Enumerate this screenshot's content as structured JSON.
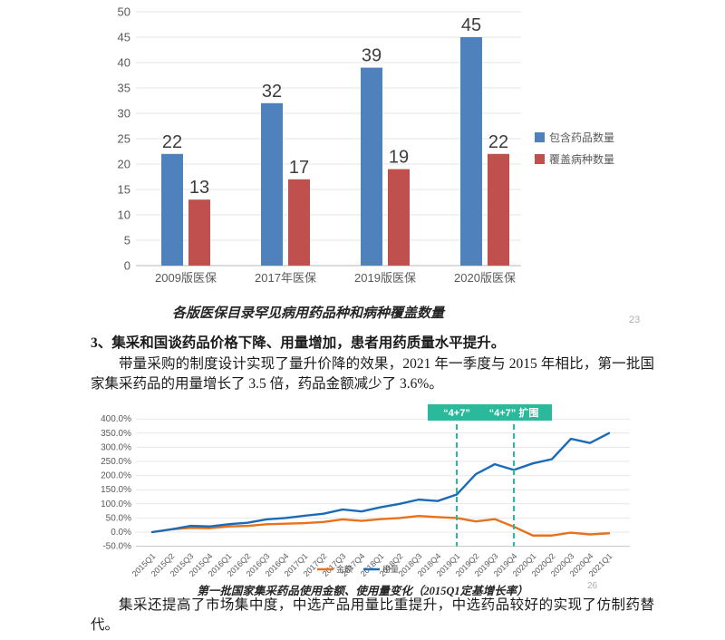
{
  "page": {
    "background": "#ffffff"
  },
  "bar_section": {
    "caption": "各版医保目录罕见病用药品种和病种覆盖数量",
    "page_number": "23"
  },
  "body": {
    "heading": "3、集采和国谈药品价格下降、用量增加，患者用药质量水平提升。",
    "paragraph1": "带量采购的制度设计实现了量升价降的效果，2021 年一季度与 2015 年相比，第一批国家集采药品的用量增长了 3.5 倍，药品金额减少了 3.6%。",
    "paragraph2": "集采还提高了市场集中度，中选产品用量比重提升，中选药品较好的实现了仿制药替代。"
  },
  "line_section": {
    "caption": "第一批国家集采药品使用金额、使用量变化（2015Q1定基增长率）",
    "page_number": "26"
  },
  "colors": {
    "bar_blue": "#4F81BD",
    "bar_red": "#C0504D",
    "line_blue": "#1B6BB8",
    "line_orange": "#E8711C",
    "annotation_teal": "#2BB99B",
    "grid": "#e4e4e4",
    "axis_text": "#595959"
  },
  "chart_data": [
    {
      "type": "bar",
      "title": "各版医保目录罕见病用药品种和病种覆盖数量",
      "categories": [
        "2009版医保",
        "2017年医保",
        "2019版医保",
        "2020版医保"
      ],
      "series": [
        {
          "name": "包含药品数量",
          "color": "#4F81BD",
          "values": [
            22,
            32,
            39,
            45
          ]
        },
        {
          "name": "覆盖病种数量",
          "color": "#C0504D",
          "values": [
            13,
            17,
            19,
            22
          ]
        }
      ],
      "ylim": [
        0,
        50
      ],
      "ytick_step": 5,
      "grid": true,
      "legend_position": "right"
    },
    {
      "type": "line",
      "title": "第一批国家集采药品使用金额、使用量变化（2015Q1定基增长率）",
      "x": [
        "2015Q1",
        "2015Q2",
        "2015Q3",
        "2015Q4",
        "2016Q1",
        "2016Q2",
        "2016Q3",
        "2016Q4",
        "2017Q1",
        "2017Q2",
        "2017Q3",
        "2017Q4",
        "2018Q1",
        "2018Q2",
        "2018Q3",
        "2018Q4",
        "2019Q1",
        "2019Q2",
        "2019Q3",
        "2019Q4",
        "2020Q1",
        "2020Q2",
        "2020Q3",
        "2020Q4",
        "2021Q1"
      ],
      "series": [
        {
          "name": "金额",
          "color": "#E8711C",
          "values": [
            0,
            10,
            15,
            14,
            20,
            22,
            28,
            30,
            32,
            36,
            45,
            40,
            46,
            50,
            57,
            53,
            50,
            38,
            46,
            19,
            -12,
            -12,
            -2,
            -8,
            -4
          ]
        },
        {
          "name": "用量",
          "color": "#1B6BB8",
          "values": [
            0,
            10,
            22,
            20,
            28,
            33,
            45,
            50,
            58,
            65,
            80,
            73,
            88,
            100,
            115,
            110,
            133,
            205,
            240,
            220,
            243,
            258,
            330,
            315,
            350
          ]
        }
      ],
      "ylim": [
        -50,
        400
      ],
      "ytick_step": 50,
      "ytick_format": "percent_one_decimal",
      "grid": true,
      "legend_position": "bottom",
      "annotations": [
        {
          "label": "“4+7”",
          "x": "2019Q1",
          "color": "#2BB99B"
        },
        {
          "label": "“4+7” 扩围",
          "x": "2019Q4",
          "color": "#2BB99B"
        }
      ]
    }
  ]
}
